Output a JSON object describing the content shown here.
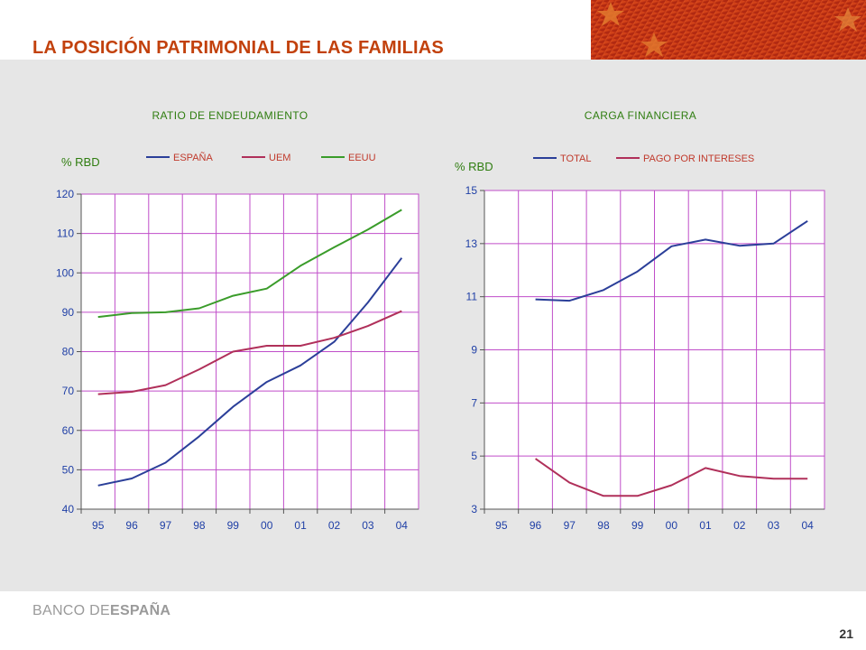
{
  "title": "LA POSICIÓN PATRIMONIAL DE LAS FAMILIAS",
  "footer": {
    "logo_light": "BANCO DE",
    "logo_bold": "ESPAÑA",
    "page_number": "21"
  },
  "colors": {
    "title": "#c2410c",
    "grid": "#c04ec9",
    "blue": "#2b3f99",
    "red": "#b0305a",
    "green": "#3a9c2a"
  },
  "chart_data": [
    {
      "type": "line",
      "title": "RATIO DE ENDEUDAMIENTO",
      "ylabel": "% RBD",
      "categories": [
        "95",
        "96",
        "97",
        "98",
        "99",
        "00",
        "01",
        "02",
        "03",
        "04"
      ],
      "ylim": [
        40,
        120
      ],
      "yticks": [
        40,
        50,
        60,
        70,
        80,
        90,
        100,
        110,
        120
      ],
      "grid": true,
      "legend_position": "top",
      "series": [
        {
          "name": "ESPAÑA",
          "color": "#2b3f99",
          "values": [
            46,
            47.8,
            51.8,
            58.5,
            66,
            72.3,
            76.5,
            82.5,
            92.5,
            103.8
          ]
        },
        {
          "name": "UEM",
          "color": "#b0305a",
          "values": [
            69.2,
            69.8,
            71.5,
            75.5,
            80,
            81.5,
            81.5,
            83.5,
            86.5,
            90.3
          ]
        },
        {
          "name": "EEUU",
          "color": "#3a9c2a",
          "values": [
            88.8,
            89.8,
            90,
            91,
            94.2,
            96,
            101.8,
            106.5,
            111,
            116
          ]
        }
      ]
    },
    {
      "type": "line",
      "title": "CARGA FINANCIERA",
      "ylabel": "% RBD",
      "categories": [
        "95",
        "96",
        "97",
        "98",
        "99",
        "00",
        "01",
        "02",
        "03",
        "04"
      ],
      "ylim": [
        3,
        15
      ],
      "yticks": [
        3,
        5,
        7,
        9,
        11,
        13,
        15
      ],
      "grid": true,
      "legend_position": "top",
      "series": [
        {
          "name": "TOTAL",
          "color": "#2b3f99",
          "values": [
            null,
            10.9,
            10.85,
            11.25,
            11.95,
            12.9,
            13.15,
            12.92,
            13.0,
            13.85
          ]
        },
        {
          "name": "PAGO POR INTERESES",
          "color": "#b0305a",
          "values": [
            null,
            4.9,
            4.0,
            3.5,
            3.5,
            3.9,
            4.55,
            4.25,
            4.15,
            4.15
          ]
        }
      ]
    }
  ]
}
